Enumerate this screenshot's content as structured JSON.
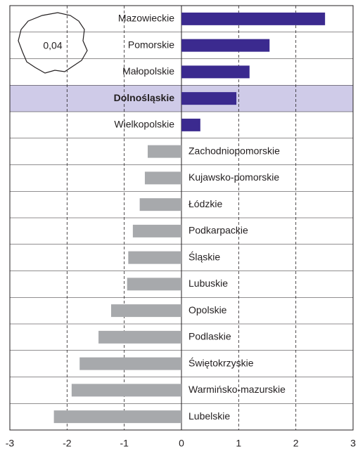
{
  "chart_data": {
    "type": "hbar",
    "annotation": "0,04",
    "highlight": "Dolnośląskie",
    "categories": [
      "Mazowieckie",
      "Pomorskie",
      "Małopolskie",
      "Dolnośląskie",
      "Wielkopolskie",
      "Zachodniopomorskie",
      "Kujawsko-pomorskie",
      "Łódzkie",
      "Podkarpackie",
      "Śląskie",
      "Lubuskie",
      "Opolskie",
      "Podlaskie",
      "Świętokrzyskie",
      "Warmińsko-mazurskie",
      "Lubelskie"
    ],
    "values": [
      2.51,
      1.54,
      1.19,
      0.96,
      0.33,
      -0.59,
      -0.64,
      -0.73,
      -0.85,
      -0.93,
      -0.95,
      -1.23,
      -1.45,
      -1.78,
      -1.92,
      -2.23
    ],
    "positive_color": "#3b2a8f",
    "negative_color": "#a7a9ac",
    "highlight_color": "#cfcbe8",
    "xlim": [
      -3,
      3
    ],
    "xticks": [
      -3,
      -2,
      -1,
      0,
      1,
      2,
      3
    ],
    "grid": true
  }
}
